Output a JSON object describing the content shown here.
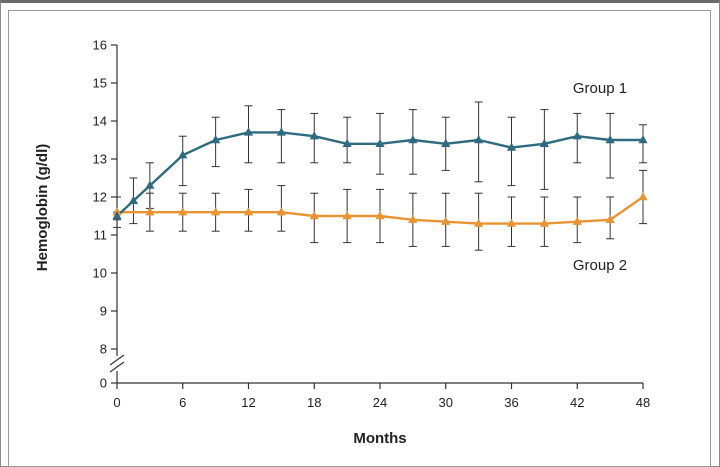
{
  "chart_data": {
    "type": "line",
    "xlabel": "Months",
    "ylabel": "Hemoglobin (g/dl)",
    "x_ticks": [
      0,
      6,
      12,
      18,
      24,
      30,
      36,
      42,
      48
    ],
    "y_ticks": [
      0,
      8,
      9,
      10,
      11,
      12,
      13,
      14,
      15,
      16
    ],
    "xlim": [
      0,
      48
    ],
    "ylim": [
      0,
      16
    ],
    "axis_break_between": [
      0,
      8
    ],
    "grid": false,
    "series": [
      {
        "name": "Group 1",
        "color": "#2e6b80",
        "marker": "triangle",
        "x": [
          0,
          1.5,
          3,
          6,
          9,
          12,
          15,
          18,
          21,
          24,
          27,
          30,
          33,
          36,
          39,
          42,
          45,
          48
        ],
        "y": [
          11.5,
          11.9,
          12.3,
          13.1,
          13.5,
          13.7,
          13.7,
          13.6,
          13.4,
          13.4,
          13.5,
          13.4,
          13.5,
          13.3,
          13.4,
          13.6,
          13.5,
          13.5
        ],
        "err_low": [
          11.4,
          11.3,
          11.7,
          12.3,
          12.8,
          12.9,
          12.9,
          12.9,
          12.9,
          12.6,
          12.6,
          12.7,
          12.4,
          12.3,
          12.2,
          12.9,
          12.5,
          12.9
        ],
        "err_high": [
          11.6,
          12.5,
          12.9,
          13.6,
          14.1,
          14.4,
          14.3,
          14.2,
          14.1,
          14.2,
          14.3,
          14.1,
          14.5,
          14.1,
          14.3,
          14.2,
          14.2,
          13.9
        ]
      },
      {
        "name": "Group 2",
        "color": "#e89432",
        "marker": "triangle",
        "x": [
          0,
          3,
          6,
          9,
          12,
          15,
          18,
          21,
          24,
          27,
          30,
          33,
          36,
          39,
          42,
          45,
          48
        ],
        "y": [
          11.6,
          11.6,
          11.6,
          11.6,
          11.6,
          11.6,
          11.5,
          11.5,
          11.5,
          11.4,
          11.35,
          11.3,
          11.3,
          11.3,
          11.35,
          11.4,
          12.0
        ],
        "err_low": [
          11.2,
          11.1,
          11.1,
          11.1,
          11.1,
          11.1,
          10.8,
          10.8,
          10.8,
          10.7,
          10.7,
          10.6,
          10.7,
          10.7,
          10.8,
          10.9,
          11.3
        ],
        "err_high": [
          12.0,
          12.1,
          12.1,
          12.1,
          12.2,
          12.3,
          12.1,
          12.2,
          12.2,
          12.1,
          12.1,
          12.1,
          12.0,
          12.0,
          12.0,
          12.0,
          12.7
        ]
      }
    ],
    "annotations": [
      {
        "text": "Group 1",
        "series": 0
      },
      {
        "text": "Group 2",
        "series": 1
      }
    ]
  }
}
